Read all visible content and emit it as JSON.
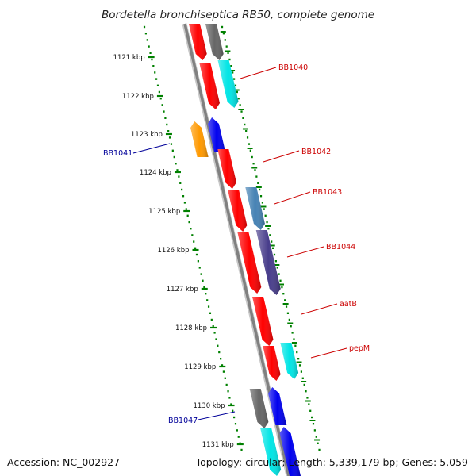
{
  "title": "Bordetella bronchiseptica RB50, complete genome",
  "footer": {
    "accession": "Accession: NC_002927",
    "summary": "Topology: circular; Length: 5,339,179 bp; Genes: 5,059"
  },
  "ticks": [
    {
      "label": "1121 kbp"
    },
    {
      "label": "1122 kbp"
    },
    {
      "label": "1123 kbp"
    },
    {
      "label": "1124 kbp"
    },
    {
      "label": "1125 kbp"
    },
    {
      "label": "1126 kbp"
    },
    {
      "label": "1127 kbp"
    },
    {
      "label": "1128 kbp"
    },
    {
      "label": "1129 kbp"
    },
    {
      "label": "1130 kbp"
    },
    {
      "label": "1131 kbp"
    }
  ],
  "gene_labels": [
    {
      "text": "BB1040",
      "color": "#cc0000"
    },
    {
      "text": "BB1041",
      "color": "#000099"
    },
    {
      "text": "BB1042",
      "color": "#cc0000"
    },
    {
      "text": "BB1043",
      "color": "#cc0000"
    },
    {
      "text": "BB1044",
      "color": "#cc0000"
    },
    {
      "text": "aatB",
      "color": "#cc0000"
    },
    {
      "text": "pepM",
      "color": "#cc0000"
    },
    {
      "text": "BB1047",
      "color": "#000099"
    }
  ],
  "colors": {
    "red": "#ff0000",
    "gray": "#666666",
    "cyan": "#00e5e5",
    "blue": "#0000ee",
    "orange": "#ff9900",
    "steelblue": "#4682b4",
    "darkslateblue": "#483d8b",
    "backbone": "#808080",
    "tick": "#008000"
  }
}
